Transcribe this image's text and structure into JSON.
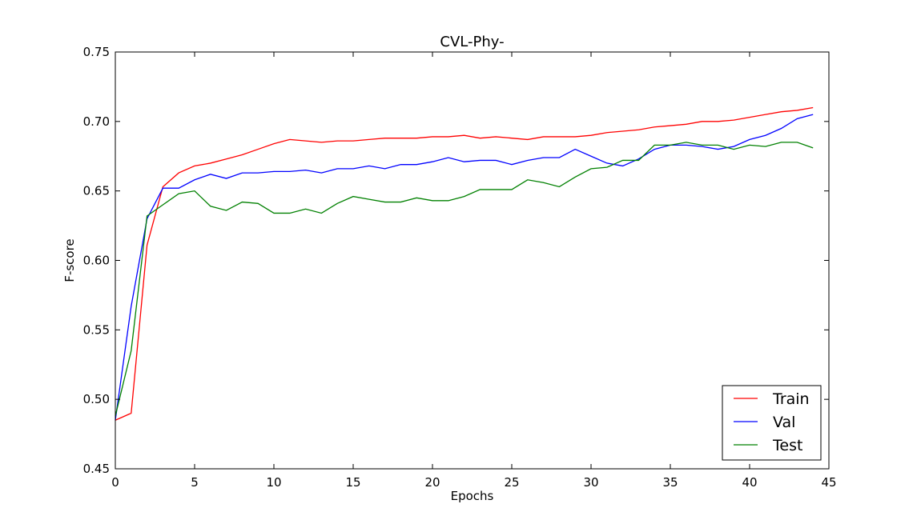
{
  "chart_data": {
    "type": "line",
    "title": "CVL-Phy-",
    "xlabel": "Epochs",
    "ylabel": "F-score",
    "xlim": [
      0,
      45
    ],
    "ylim": [
      0.45,
      0.75
    ],
    "xticks": [
      0,
      5,
      10,
      15,
      20,
      25,
      30,
      35,
      40,
      45
    ],
    "yticks": [
      0.45,
      0.5,
      0.55,
      0.6,
      0.65,
      0.7,
      0.75
    ],
    "xtick_labels": [
      "0",
      "5",
      "10",
      "15",
      "20",
      "25",
      "30",
      "35",
      "40",
      "45"
    ],
    "ytick_labels": [
      "0.45",
      "0.50",
      "0.55",
      "0.60",
      "0.65",
      "0.70",
      "0.75"
    ],
    "grid": false,
    "legend_position": "bottom-right",
    "x": [
      0,
      1,
      2,
      3,
      4,
      5,
      6,
      7,
      8,
      9,
      10,
      11,
      12,
      13,
      14,
      15,
      16,
      17,
      18,
      19,
      20,
      21,
      22,
      23,
      24,
      25,
      26,
      27,
      28,
      29,
      30,
      31,
      32,
      33,
      34,
      35,
      36,
      37,
      38,
      39,
      40,
      41,
      42,
      43,
      44
    ],
    "series": [
      {
        "name": "Train",
        "color": "#ff0000",
        "values": [
          0.485,
          0.49,
          0.611,
          0.653,
          0.663,
          0.668,
          0.67,
          0.673,
          0.676,
          0.68,
          0.684,
          0.687,
          0.686,
          0.685,
          0.686,
          0.686,
          0.687,
          0.688,
          0.688,
          0.688,
          0.689,
          0.689,
          0.69,
          0.688,
          0.689,
          0.688,
          0.687,
          0.689,
          0.689,
          0.689,
          0.69,
          0.692,
          0.693,
          0.694,
          0.696,
          0.697,
          0.698,
          0.7,
          0.7,
          0.701,
          0.703,
          0.705,
          0.707,
          0.708,
          0.71
        ]
      },
      {
        "name": "Val",
        "color": "#0000ff",
        "values": [
          0.485,
          0.567,
          0.63,
          0.652,
          0.652,
          0.658,
          0.662,
          0.659,
          0.663,
          0.663,
          0.664,
          0.664,
          0.665,
          0.663,
          0.666,
          0.666,
          0.668,
          0.666,
          0.669,
          0.669,
          0.671,
          0.674,
          0.671,
          0.672,
          0.672,
          0.669,
          0.672,
          0.674,
          0.674,
          0.68,
          0.675,
          0.67,
          0.668,
          0.673,
          0.68,
          0.683,
          0.683,
          0.682,
          0.68,
          0.682,
          0.687,
          0.69,
          0.695,
          0.702,
          0.705
        ]
      },
      {
        "name": "Test",
        "color": "#008000",
        "values": [
          0.488,
          0.535,
          0.632,
          0.64,
          0.648,
          0.65,
          0.639,
          0.636,
          0.642,
          0.641,
          0.634,
          0.634,
          0.637,
          0.634,
          0.641,
          0.646,
          0.644,
          0.642,
          0.642,
          0.645,
          0.643,
          0.643,
          0.646,
          0.651,
          0.651,
          0.651,
          0.658,
          0.656,
          0.653,
          0.66,
          0.666,
          0.667,
          0.672,
          0.672,
          0.683,
          0.683,
          0.685,
          0.683,
          0.683,
          0.68,
          0.683,
          0.682,
          0.685,
          0.685,
          0.681
        ]
      }
    ]
  }
}
